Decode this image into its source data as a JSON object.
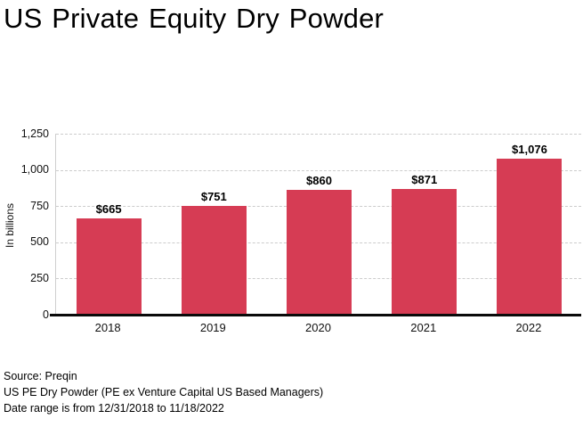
{
  "header": {
    "title": "US Private Equity Dry Powder"
  },
  "chart_data": {
    "type": "bar",
    "title": "US Private Equity Dry Powder",
    "categories": [
      "2018",
      "2019",
      "2020",
      "2021",
      "2022"
    ],
    "values": [
      665,
      751,
      860,
      871,
      1076
    ],
    "value_labels": [
      "$665",
      "$751",
      "$860",
      "$871",
      "$1,076"
    ],
    "xlabel": "",
    "ylabel": "In billions",
    "ylim": [
      0,
      1250
    ],
    "y_ticks": [
      {
        "label": "0",
        "value": 0
      },
      {
        "label": "250",
        "value": 250
      },
      {
        "label": "500",
        "value": 500
      },
      {
        "label": "750",
        "value": 750
      },
      {
        "label": "1,000",
        "value": 1000
      },
      {
        "label": "1,250",
        "value": 1250
      }
    ],
    "grid": "horizontal-dashed",
    "legend_position": "none",
    "bar_color": "#d63c54",
    "gridline_color": "#cccccc",
    "axis_color": "#0a0a0a"
  },
  "footer": {
    "lines": [
      "Source: Preqin",
      "US PE Dry Powder (PE ex Venture Capital US Based Managers)",
      "Date range is from 12/31/2018 to 11/18/2022"
    ]
  }
}
